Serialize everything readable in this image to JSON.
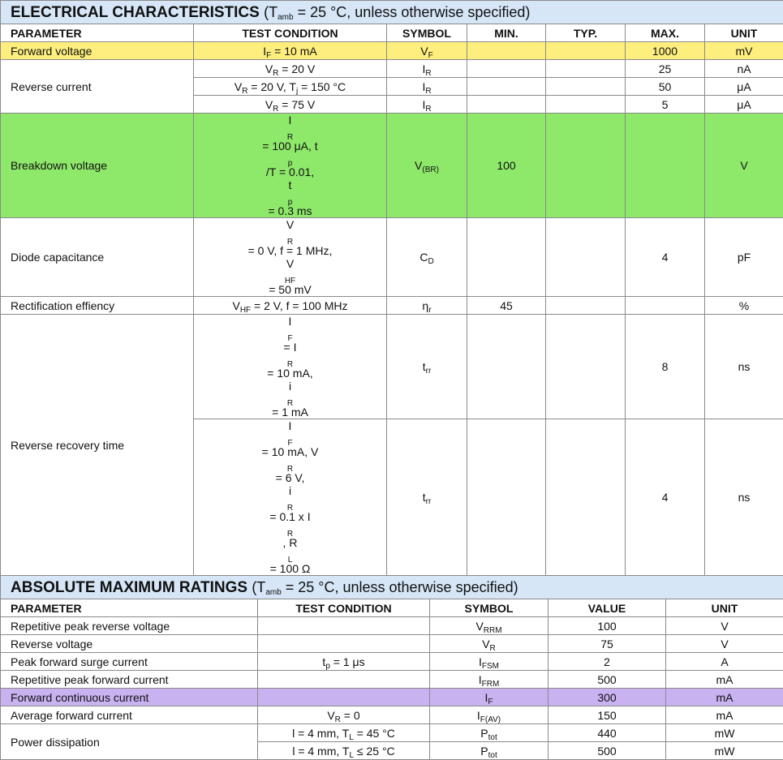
{
  "electrical": {
    "title_main": "ELECTRICAL CHARACTERISTICS",
    "title_cond_pre": "(T",
    "title_cond_sub": "amb",
    "title_cond_post": " = 25 °C, unless otherwise specified)",
    "headers": [
      "PARAMETER",
      "TEST CONDITION",
      "SYMBOL",
      "MIN.",
      "TYP.",
      "MAX.",
      "UNIT"
    ],
    "forward_voltage": {
      "param": "Forward voltage",
      "cond_a": "I",
      "cond_a_sub": "F",
      "cond_b": " = 10 mA",
      "sym": "V",
      "sym_sub": "F",
      "min": "",
      "typ": "",
      "max": "1000",
      "unit": "mV"
    },
    "reverse_current": {
      "param": "Reverse current",
      "rows": [
        {
          "c1": "V",
          "c1s": "R",
          "c2": " = 20 V",
          "c3": "",
          "c3s": "",
          "c4": "",
          "sym": "I",
          "sym_sub": "R",
          "min": "",
          "typ": "",
          "max": "25",
          "unit": "nA"
        },
        {
          "c1": "V",
          "c1s": "R",
          "c2": " = 20 V, T",
          "c3": "j",
          "c3s": "",
          "c4": " = 150 °C",
          "sym": "I",
          "sym_sub": "R",
          "min": "",
          "typ": "",
          "max": "50",
          "unit": "μA"
        },
        {
          "c1": "V",
          "c1s": "R",
          "c2": " = 75 V",
          "c3": "",
          "c3s": "",
          "c4": "",
          "sym": "I",
          "sym_sub": "R",
          "min": "",
          "typ": "",
          "max": "5",
          "unit": "μA"
        }
      ]
    },
    "breakdown": {
      "param": "Breakdown voltage",
      "l1a": "I",
      "l1as": "R",
      "l1b": " = 100 μA, t",
      "l1bs": "p",
      "l1c": "/T = 0.01,",
      "l2a": "t",
      "l2as": "p",
      "l2b": " = 0.3 ms",
      "sym": "V",
      "sym_sub": "(BR)",
      "min": "100",
      "typ": "",
      "max": "",
      "unit": "V"
    },
    "capacitance": {
      "param": "Diode capacitance",
      "l1a": "V",
      "l1as": "R",
      "l1b": " = 0 V, f = 1 MHz,",
      "l2a": "V",
      "l2as": "HF",
      "l2b": " = 50 mV",
      "sym": "C",
      "sym_sub": "D",
      "min": "",
      "typ": "",
      "max": "4",
      "unit": "pF"
    },
    "rectification": {
      "param": "Rectification effiency",
      "ca": "V",
      "cas": "HF",
      "cb": " = 2 V, f = 100 MHz",
      "sym": "η",
      "sym_sub": "r",
      "min": "45",
      "typ": "",
      "max": "",
      "unit": "%"
    },
    "recovery": {
      "param": "Reverse recovery time",
      "row1": {
        "l1a": "I",
        "l1as": "F",
        "l1b": " = I",
        "l1bs": "R",
        "l1c": " = 10 mA,",
        "l2a": "i",
        "l2as": "R",
        "l2b": " = 1 mA",
        "sym": "t",
        "sym_sub": "rr",
        "min": "",
        "typ": "",
        "max": "8",
        "unit": "ns"
      },
      "row2": {
        "l1a": "I",
        "l1as": "F",
        "l1b": " = 10 mA, V",
        "l1bs": "R",
        "l1c": " = 6 V,",
        "l2a": "i",
        "l2as": "R",
        "l2b": " = 0.1 x I",
        "l2bs": "R",
        "l2c": ", R",
        "l2cs": "L",
        "l2d": " = 100 Ω",
        "sym": "t",
        "sym_sub": "rr",
        "min": "",
        "typ": "",
        "max": "4",
        "unit": "ns"
      }
    }
  },
  "absolute": {
    "title_main": "ABSOLUTE MAXIMUM RATINGS",
    "title_cond_pre": "(T",
    "title_cond_sub": "amb",
    "title_cond_post": " = 25 °C, unless otherwise specified)",
    "headers": [
      "PARAMETER",
      "TEST CONDITION",
      "SYMBOL",
      "VALUE",
      "UNIT"
    ],
    "rows": [
      {
        "param": "Repetitive peak reverse voltage",
        "ca": "",
        "cas": "",
        "cb": "",
        "sym": "V",
        "sym_sub": "RRM",
        "value": "100",
        "unit": "V"
      },
      {
        "param": "Reverse voltage",
        "ca": "",
        "cas": "",
        "cb": "",
        "sym": "V",
        "sym_sub": "R",
        "value": "75",
        "unit": "V"
      },
      {
        "param": "Peak forward surge current",
        "ca": "t",
        "cas": "p",
        "cb": " = 1 μs",
        "sym": "I",
        "sym_sub": "FSM",
        "value": "2",
        "unit": "A"
      },
      {
        "param": "Repetitive peak forward current",
        "ca": "",
        "cas": "",
        "cb": "",
        "sym": "I",
        "sym_sub": "FRM",
        "value": "500",
        "unit": "mA"
      },
      {
        "param": "Forward continuous current",
        "ca": "",
        "cas": "",
        "cb": "",
        "sym": "I",
        "sym_sub": "F",
        "value": "300",
        "unit": "mA"
      },
      {
        "param": "Average forward current",
        "ca": "V",
        "cas": "R",
        "cb": " = 0",
        "sym": "I",
        "sym_sub": "F(AV)",
        "value": "150",
        "unit": "mA"
      }
    ],
    "power": {
      "param": "Power dissipation",
      "rows": [
        {
          "ca": "l = 4 mm, T",
          "cas": "L",
          "cb": " = 45 °C",
          "sym": "P",
          "sym_sub": "tot",
          "value": "440",
          "unit": "mW"
        },
        {
          "ca": "l = 4 mm, T",
          "cas": "L",
          "cb": " ≤ 25 °C",
          "sym": "P",
          "sym_sub": "tot",
          "value": "500",
          "unit": "mW"
        }
      ]
    }
  },
  "colors": {
    "title_bg": "#d6e6f7",
    "yellow": "#fdee7e",
    "green": "#8ee86a",
    "purple": "#c9b2f0"
  }
}
